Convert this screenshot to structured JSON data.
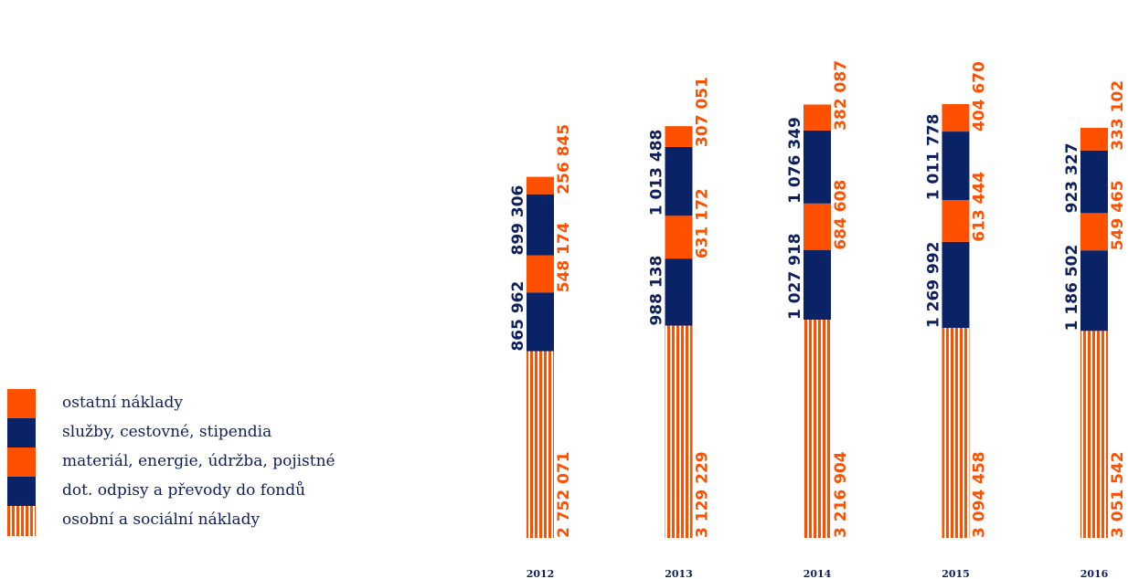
{
  "chart_data": {
    "type": "bar",
    "stacked": true,
    "orientation": "vertical",
    "categories": [
      "2012",
      "2013",
      "2014",
      "2015",
      "2016"
    ],
    "series": [
      {
        "name": "osobní a sociální náklady",
        "values": [
          2752071,
          3129229,
          3216904,
          3094458,
          3051542
        ],
        "color": "#ff5000",
        "pattern": "stripes",
        "value_labels": [
          "2 752 071",
          "3 129 229",
          "3 216 904",
          "3 094 458",
          "3 051 542"
        ]
      },
      {
        "name": "dot. odpisy a převody do fondů",
        "values": [
          865962,
          988138,
          1027918,
          1269992,
          1186502
        ],
        "color": "#0a2266",
        "value_labels": [
          "865 962",
          "988 138",
          "1 027 918",
          "1 269 992",
          "1 186 502"
        ]
      },
      {
        "name": "materiál, energie, údržba, pojistné",
        "values": [
          548174,
          631172,
          684608,
          613444,
          549465
        ],
        "color": "#ff5000",
        "value_labels": [
          "548 174",
          "631 172",
          "684 608",
          "613 444",
          "549 465"
        ]
      },
      {
        "name": "služby, cestovné, stipendia",
        "values": [
          899306,
          1013488,
          1076349,
          1011778,
          923327
        ],
        "color": "#0a2266",
        "value_labels": [
          "899 306",
          "1 013 488",
          "1 076 349",
          "1 011 778",
          "923 327"
        ]
      },
      {
        "name": "ostatní náklady",
        "values": [
          256845,
          307051,
          382087,
          404670,
          333102
        ],
        "color": "#ff5000",
        "value_labels": [
          "256 845",
          "307 051",
          "382 087",
          "404 670",
          "333 102"
        ]
      }
    ],
    "title": "",
    "xlabel": "",
    "ylabel": "",
    "legend_position": "left",
    "grid": false
  },
  "legend": {
    "items": [
      {
        "label": "ostatní náklady",
        "swatch": "orange"
      },
      {
        "label": "služby, cestovné, stipendia",
        "swatch": "navy"
      },
      {
        "label": "materiál, energie, údržba, pojistné",
        "swatch": "orange"
      },
      {
        "label": "dot. odpisy a převody do fondů",
        "swatch": "navy"
      },
      {
        "label": "osobní a sociální náklady",
        "swatch": "stripe"
      }
    ]
  },
  "colors": {
    "orange": "#ff5000",
    "navy": "#0a2266",
    "text_navy": "#0d1f5c"
  }
}
